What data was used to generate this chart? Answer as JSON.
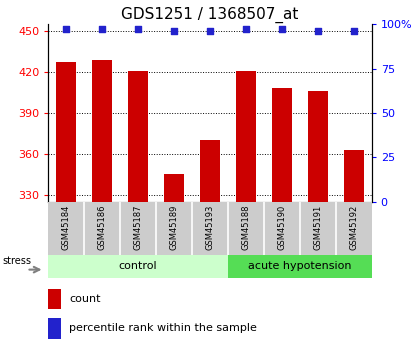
{
  "title": "GDS1251 / 1368507_at",
  "samples": [
    "GSM45184",
    "GSM45186",
    "GSM45187",
    "GSM45189",
    "GSM45193",
    "GSM45188",
    "GSM45190",
    "GSM45191",
    "GSM45192"
  ],
  "counts": [
    427,
    429,
    421,
    345,
    370,
    421,
    408,
    406,
    363
  ],
  "percentiles": [
    97,
    97,
    97,
    96,
    96,
    97,
    97,
    96,
    96
  ],
  "control_count": 5,
  "acute_count": 4,
  "bar_color": "#cc0000",
  "dot_color": "#2222cc",
  "ylim_left": [
    325,
    455
  ],
  "yticks_left": [
    330,
    360,
    390,
    420,
    450
  ],
  "ylim_right": [
    0,
    100
  ],
  "yticks_right": [
    0,
    25,
    50,
    75,
    100
  ],
  "legend_count": "count",
  "legend_percentile": "percentile rank within the sample",
  "bar_width": 0.55,
  "grid_color": "#333333",
  "title_fontsize": 11,
  "tick_fontsize": 8,
  "sample_fontsize": 6,
  "group_fontsize": 8,
  "legend_fontsize": 8,
  "control_color_light": "#ccffcc",
  "acute_color_dark": "#55dd55",
  "gray_box_color": "#cccccc",
  "stress_text": "stress"
}
